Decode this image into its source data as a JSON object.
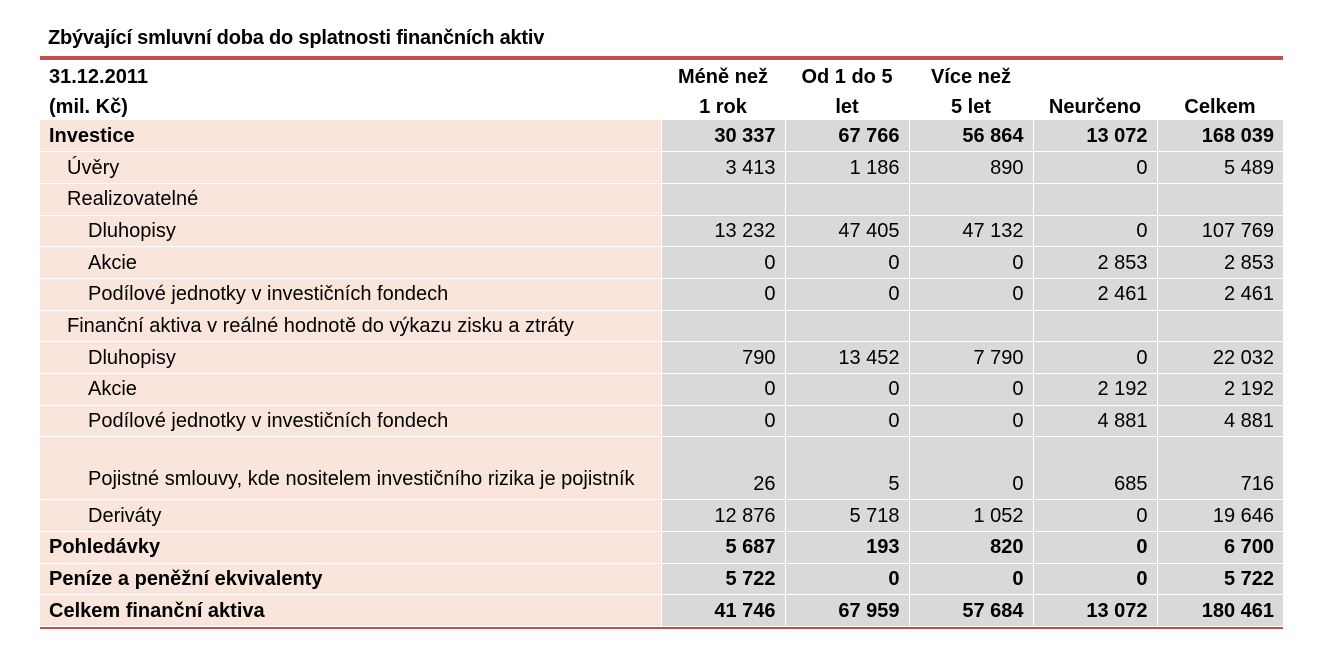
{
  "caption": "Zbývající smluvní doba do splatnosti finančních aktiv",
  "header": {
    "line1": [
      "31.12.2011",
      "Méně než",
      "Od 1 do 5",
      "Více než",
      "",
      ""
    ],
    "line2": [
      "(mil. Kč)",
      "1 rok",
      "let",
      "5 let",
      "Neurčeno",
      "Celkem"
    ]
  },
  "rows": [
    {
      "label": "Investice",
      "values": [
        "30 337",
        "67 766",
        "56 864",
        "13 072",
        "168 039"
      ]
    },
    {
      "label": "Úvěry",
      "values": [
        "3 413",
        "1 186",
        "890",
        "0",
        "5 489"
      ]
    },
    {
      "label": "Realizovatelné",
      "values": [
        "",
        "",
        "",
        "",
        ""
      ]
    },
    {
      "label": "Dluhopisy",
      "values": [
        "13 232",
        "47 405",
        "47 132",
        "0",
        "107 769"
      ]
    },
    {
      "label": "Akcie",
      "values": [
        "0",
        "0",
        "0",
        "2 853",
        "2 853"
      ]
    },
    {
      "label": "Podílové jednotky v investičních fondech",
      "values": [
        "0",
        "0",
        "0",
        "2 461",
        "2 461"
      ]
    },
    {
      "label": "Finanční aktiva v reálné hodnotě do výkazu zisku a ztráty",
      "values": [
        "",
        "",
        "",
        "",
        ""
      ]
    },
    {
      "label": "Dluhopisy",
      "values": [
        "790",
        "13 452",
        "7 790",
        "0",
        "22 032"
      ]
    },
    {
      "label": "Akcie",
      "values": [
        "0",
        "0",
        "0",
        "2 192",
        "2 192"
      ]
    },
    {
      "label": "Podílové jednotky v investičních fondech",
      "values": [
        "0",
        "0",
        "0",
        "4 881",
        "4 881"
      ]
    },
    {
      "label": "Pojistné smlouvy, kde nositelem investičního rizika je pojistník",
      "values": [
        "26",
        "5",
        "0",
        "685",
        "716"
      ]
    },
    {
      "label": "Deriváty",
      "values": [
        "12 876",
        "5 718",
        "1 052",
        "0",
        "19 646"
      ]
    },
    {
      "label": "Pohledávky",
      "values": [
        "5 687",
        "193",
        "820",
        "0",
        "6 700"
      ]
    },
    {
      "label": "Peníze a peněžní ekvivalenty",
      "values": [
        "5 722",
        "0",
        "0",
        "0",
        "5 722"
      ]
    },
    {
      "label": "Celkem finanční aktiva",
      "values": [
        "41 746",
        "67 959",
        "57 684",
        "13 072",
        "180 461"
      ]
    }
  ]
}
